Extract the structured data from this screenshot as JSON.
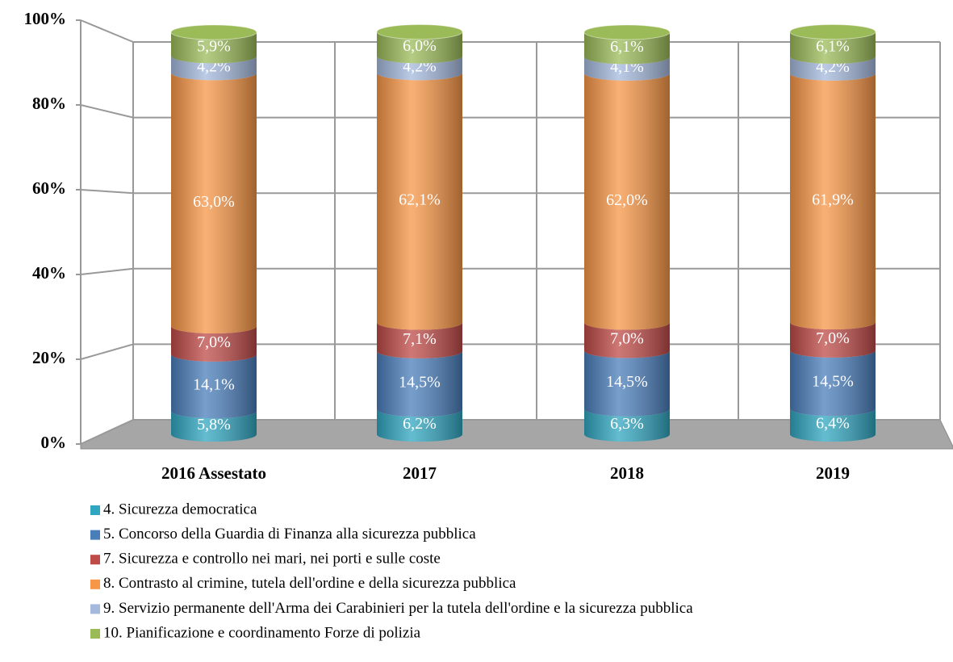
{
  "chart_data": {
    "type": "bar",
    "stacked": true,
    "categories": [
      "2016 Assestato",
      "2017",
      "2018",
      "2019"
    ],
    "series": [
      {
        "name": "4. Sicurezza democratica",
        "color": "#31a6c0",
        "values": [
          5.8,
          6.2,
          6.3,
          6.4
        ],
        "value_labels": [
          "5,8%",
          "6,2%",
          "6,3%",
          "6,4%"
        ]
      },
      {
        "name": "5. Concorso della Guardia di Finanza alla sicurezza pubblica",
        "color": "#4a7ebb",
        "values": [
          14.1,
          14.5,
          14.5,
          14.5
        ],
        "value_labels": [
          "14,1%",
          "14,5%",
          "14,5%",
          "14,5%"
        ]
      },
      {
        "name": "7. Sicurezza e controllo nei mari, nei porti e sulle coste",
        "color": "#be4b48",
        "values": [
          7.0,
          7.1,
          7.0,
          7.0
        ],
        "value_labels": [
          "7,0%",
          "7,1%",
          "7,0%",
          "7,0%"
        ]
      },
      {
        "name": "8. Contrasto al crimine, tutela dell'ordine e della sicurezza pubblica",
        "color": "#f79646",
        "values": [
          63.0,
          62.1,
          62.0,
          61.9
        ],
        "value_labels": [
          "63,0%",
          "62,1%",
          "62,0%",
          "61,9%"
        ]
      },
      {
        "name": "9. Servizio permanente dell'Arma dei Carabinieri per la tutela dell'ordine e la sicurezza pubblica",
        "color": "#a5b9dd",
        "values": [
          4.2,
          4.2,
          4.1,
          4.2
        ],
        "value_labels": [
          "4,2%",
          "4,2%",
          "4,1%",
          "4,2%"
        ]
      },
      {
        "name": "10. Pianificazione e coordinamento Forze di polizia",
        "color": "#9bbb59",
        "values": [
          5.9,
          6.0,
          6.1,
          6.1
        ],
        "value_labels": [
          "5,9%",
          "6,0%",
          "6,1%",
          "6,1%"
        ]
      }
    ],
    "ylim": [
      0,
      100
    ],
    "yticks": [
      {
        "value": 0,
        "label": "0%"
      },
      {
        "value": 20,
        "label": "20%"
      },
      {
        "value": 40,
        "label": "40%"
      },
      {
        "value": 60,
        "label": "60%"
      },
      {
        "value": 80,
        "label": "80%"
      },
      {
        "value": 100,
        "label": "100%"
      }
    ],
    "grid": true,
    "legend": "bottom"
  }
}
